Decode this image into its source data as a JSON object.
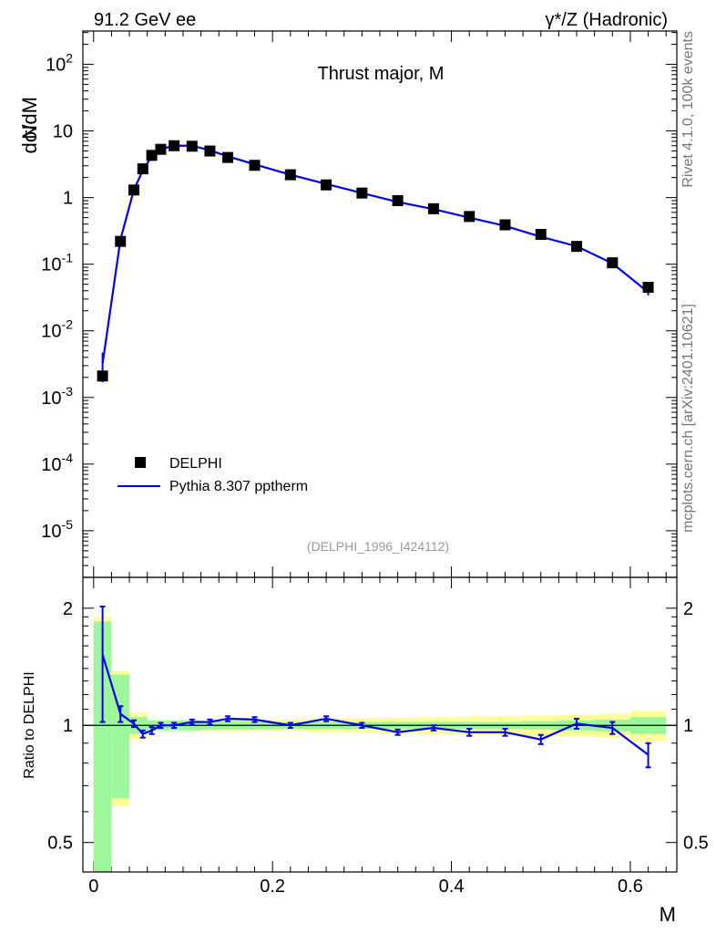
{
  "header": {
    "left": "91.2 GeV ee",
    "right": "γ*/Z (Hadronic)"
  },
  "side_labels": {
    "rivet": "Rivet 4.1.0,  100k events",
    "mcplots": "mcplots.cern.ch [arXiv:2401.10621]"
  },
  "colors": {
    "data": "#000000",
    "mc": "#0000e6",
    "band_inner": "#9cf79c",
    "band_outer": "#ffff99"
  },
  "chart_data": [
    {
      "type": "scatter",
      "title": "Thrust major, M",
      "ylabel_n": "N",
      "ylabel_expr": "dσ/dM",
      "xlabel": "",
      "yscale": "log",
      "xlim": [
        -0.012,
        0.652
      ],
      "ylim_log10": [
        -5.7,
        2.5
      ],
      "ytick_labels": [
        "10^-5",
        "10^-4",
        "10^-3",
        "10^-2",
        "10^-1",
        "1",
        "10",
        "10^2"
      ],
      "watermark": "(DELPHI_1996_I424112)",
      "legend": [
        {
          "label": "DELPHI",
          "marker": "square"
        },
        {
          "label": "Pythia 8.307 pptherm",
          "marker": "line"
        }
      ],
      "series": [
        {
          "name": "DELPHI",
          "x": [
            0.01,
            0.03,
            0.045,
            0.055,
            0.065,
            0.075,
            0.09,
            0.11,
            0.13,
            0.15,
            0.18,
            0.22,
            0.26,
            0.3,
            0.34,
            0.38,
            0.42,
            0.46,
            0.5,
            0.54,
            0.58,
            0.62
          ],
          "y": [
            0.0021,
            0.22,
            1.3,
            2.7,
            4.3,
            5.3,
            6.0,
            5.9,
            5.0,
            4.0,
            3.05,
            2.2,
            1.55,
            1.17,
            0.9,
            0.68,
            0.52,
            0.39,
            0.28,
            0.185,
            0.105,
            0.045
          ]
        },
        {
          "name": "Pythia 8.307 pptherm",
          "x": [
            0.01,
            0.03,
            0.045,
            0.055,
            0.065,
            0.075,
            0.09,
            0.11,
            0.13,
            0.15,
            0.18,
            0.22,
            0.26,
            0.3,
            0.34,
            0.38,
            0.42,
            0.46,
            0.5,
            0.54,
            0.58,
            0.62
          ],
          "y": [
            0.0032,
            0.235,
            1.31,
            2.56,
            4.17,
            5.33,
            6.0,
            6.02,
            5.12,
            4.16,
            3.15,
            2.2,
            1.6,
            1.17,
            0.86,
            0.67,
            0.5,
            0.375,
            0.258,
            0.186,
            0.103,
            0.038
          ],
          "yerr": [
            0.0015,
            0.02,
            0.05,
            0.06,
            0.1,
            0.1,
            0.1,
            0.1,
            0.1,
            0.08,
            0.05,
            0.04,
            0.03,
            0.025,
            0.02,
            0.015,
            0.012,
            0.01,
            0.008,
            0.007,
            0.005,
            0.004
          ]
        }
      ]
    },
    {
      "type": "line",
      "ylabel": "Ratio to DELPHI",
      "xlabel": "M",
      "yscale": "log",
      "xlim": [
        -0.012,
        0.652
      ],
      "ylim": [
        0.42,
        2.4
      ],
      "ytick_labels": [
        "0.5",
        "1",
        "2"
      ],
      "xtick_labels": [
        "0",
        "0.2",
        "0.4",
        "0.6"
      ],
      "reference_line": 1,
      "band": {
        "edges": [
          0.0,
          0.02,
          0.04,
          0.06,
          0.08,
          0.12,
          0.18,
          0.24,
          0.3,
          0.36,
          0.42,
          0.48,
          0.52,
          0.56,
          0.6,
          0.64
        ],
        "inner": [
          0.85,
          0.35,
          0.05,
          0.03,
          0.03,
          0.025,
          0.02,
          0.02,
          0.02,
          0.02,
          0.02,
          0.025,
          0.03,
          0.035,
          0.05,
          0.06
        ],
        "outer": [
          0.9,
          0.38,
          0.08,
          0.03,
          0.03,
          0.03,
          0.035,
          0.04,
          0.045,
          0.05,
          0.055,
          0.06,
          0.065,
          0.07,
          0.09,
          0.12
        ]
      },
      "series": [
        {
          "name": "Pythia 8.307 pptherm / DELPHI",
          "x": [
            0.01,
            0.03,
            0.045,
            0.055,
            0.065,
            0.075,
            0.09,
            0.11,
            0.13,
            0.15,
            0.18,
            0.22,
            0.26,
            0.3,
            0.34,
            0.38,
            0.42,
            0.46,
            0.5,
            0.54,
            0.58,
            0.62
          ],
          "y": [
            1.52,
            1.07,
            1.01,
            0.95,
            0.97,
            1.0,
            1.0,
            1.02,
            1.02,
            1.04,
            1.035,
            1.0,
            1.04,
            1.0,
            0.96,
            0.985,
            0.96,
            0.96,
            0.92,
            1.01,
            0.985,
            0.84
          ],
          "yerr": [
            0.5,
            0.05,
            0.02,
            0.02,
            0.02,
            0.015,
            0.015,
            0.015,
            0.015,
            0.015,
            0.015,
            0.015,
            0.015,
            0.015,
            0.015,
            0.015,
            0.02,
            0.02,
            0.025,
            0.03,
            0.035,
            0.06
          ]
        }
      ]
    }
  ]
}
